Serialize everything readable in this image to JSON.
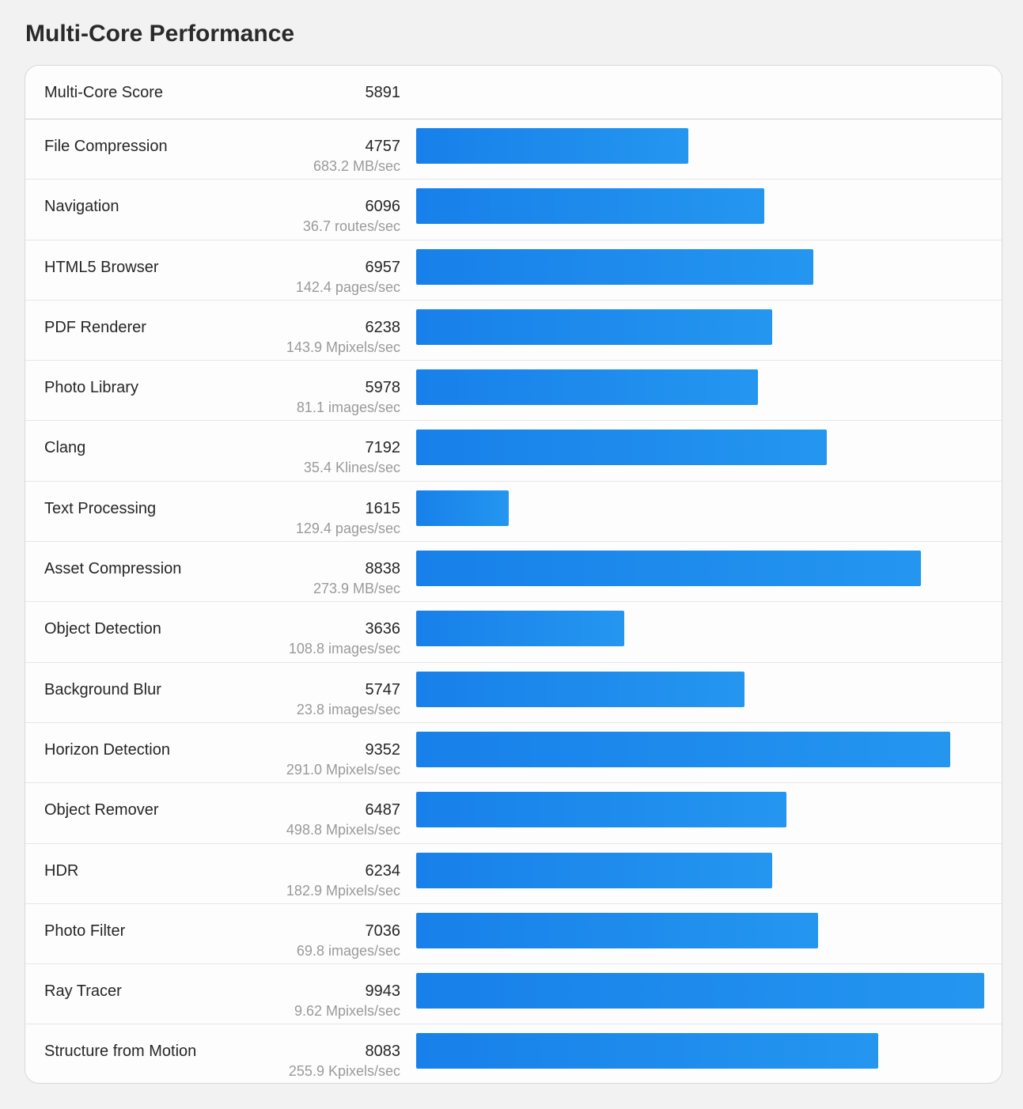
{
  "page": {
    "title": "Multi-Core Performance"
  },
  "summary": {
    "label": "Multi-Core Score",
    "score": "5891"
  },
  "chart_data": {
    "type": "bar",
    "orientation": "horizontal",
    "bar_color": "#1a86ec",
    "xlim": [
      0,
      9943
    ],
    "categories": [
      "File Compression",
      "Navigation",
      "HTML5 Browser",
      "PDF Renderer",
      "Photo Library",
      "Clang",
      "Text Processing",
      "Asset Compression",
      "Object Detection",
      "Background Blur",
      "Horizon Detection",
      "Object Remover",
      "HDR",
      "Photo Filter",
      "Ray Tracer",
      "Structure from Motion"
    ],
    "values": [
      4757,
      6096,
      6957,
      6238,
      5978,
      7192,
      1615,
      8838,
      3636,
      5747,
      9352,
      6487,
      6234,
      7036,
      9943,
      8083
    ]
  },
  "rows": [
    {
      "label": "File Compression",
      "score": "4757",
      "rate": "683.2 MB/sec",
      "value": 4757
    },
    {
      "label": "Navigation",
      "score": "6096",
      "rate": "36.7 routes/sec",
      "value": 6096
    },
    {
      "label": "HTML5 Browser",
      "score": "6957",
      "rate": "142.4 pages/sec",
      "value": 6957
    },
    {
      "label": "PDF Renderer",
      "score": "6238",
      "rate": "143.9 Mpixels/sec",
      "value": 6238
    },
    {
      "label": "Photo Library",
      "score": "5978",
      "rate": "81.1 images/sec",
      "value": 5978
    },
    {
      "label": "Clang",
      "score": "7192",
      "rate": "35.4 Klines/sec",
      "value": 7192
    },
    {
      "label": "Text Processing",
      "score": "1615",
      "rate": "129.4 pages/sec",
      "value": 1615
    },
    {
      "label": "Asset Compression",
      "score": "8838",
      "rate": "273.9 MB/sec",
      "value": 8838
    },
    {
      "label": "Object Detection",
      "score": "3636",
      "rate": "108.8 images/sec",
      "value": 3636
    },
    {
      "label": "Background Blur",
      "score": "5747",
      "rate": "23.8 images/sec",
      "value": 5747
    },
    {
      "label": "Horizon Detection",
      "score": "9352",
      "rate": "291.0 Mpixels/sec",
      "value": 9352
    },
    {
      "label": "Object Remover",
      "score": "6487",
      "rate": "498.8 Mpixels/sec",
      "value": 6487
    },
    {
      "label": "HDR",
      "score": "6234",
      "rate": "182.9 Mpixels/sec",
      "value": 6234
    },
    {
      "label": "Photo Filter",
      "score": "7036",
      "rate": "69.8 images/sec",
      "value": 7036
    },
    {
      "label": "Ray Tracer",
      "score": "9943",
      "rate": "9.62 Mpixels/sec",
      "value": 9943
    },
    {
      "label": "Structure from Motion",
      "score": "8083",
      "rate": "255.9 Kpixels/sec",
      "value": 8083
    }
  ]
}
